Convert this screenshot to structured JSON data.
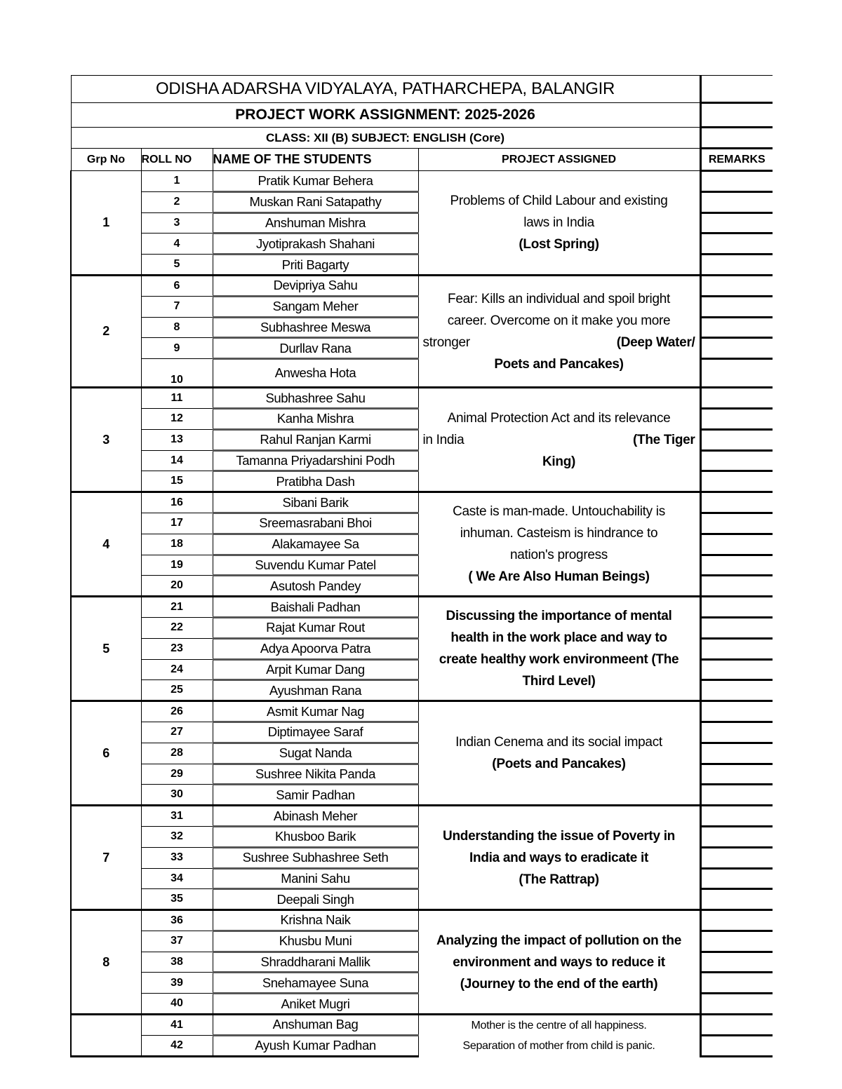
{
  "header": {
    "school": "ODISHA ADARSHA VIDYALAYA, PATHARCHEPA, BALANGIR",
    "title": "PROJECT WORK ASSIGNMENT: 2025-2026",
    "class_line": "CLASS: XII (B) SUBJECT: ENGLISH (Core)"
  },
  "columns": [
    "Grp No",
    "ROLL NO",
    "NAME OF THE STUDENTS",
    "PROJECT ASSIGNED",
    "REMARKS"
  ],
  "groups": [
    {
      "grp": "1",
      "students": [
        [
          "1",
          "Pratik Kumar Behera"
        ],
        [
          "2",
          "Muskan Rani Satapathy"
        ],
        [
          "3",
          "Anshuman Mishra"
        ],
        [
          "4",
          "Jyotiprakash Shahani"
        ],
        [
          "5",
          "Priti Bagarty"
        ]
      ],
      "project": [
        {
          "t": "Problems of Child Labour and existing"
        },
        {
          "t": "laws in India"
        },
        {
          "b": "(Lost Spring)"
        }
      ]
    },
    {
      "grp": "2",
      "students": [
        [
          "6",
          "Devipriya Sahu"
        ],
        [
          "7",
          "Sangam Meher"
        ],
        [
          "8",
          "Subhashree Meswa"
        ],
        [
          "9",
          "Durllav Rana"
        ],
        [
          "10",
          "Anwesha Hota"
        ]
      ],
      "project": [
        {
          "t": "Fear: Kills an individual and spoil bright"
        },
        {
          "t": "career. Overcome on it make you more"
        },
        {
          "t": "stronger",
          "b": "(Deep Water/",
          "split": true
        },
        {
          "b": "Poets and Pancakes)"
        }
      ]
    },
    {
      "grp": "3",
      "students": [
        [
          "11",
          "Subhashree Sahu"
        ],
        [
          "12",
          "Kanha Mishra"
        ],
        [
          "13",
          "Rahul Ranjan Karmi"
        ],
        [
          "14",
          "Tamanna Priyadarshini Podh"
        ],
        [
          "15",
          "Pratibha Dash"
        ]
      ],
      "project": [
        {
          "t": "Animal Protection Act and its relevance"
        },
        {
          "t": "in India",
          "b": "(The Tiger",
          "split": true
        },
        {
          "b": "King)"
        }
      ]
    },
    {
      "grp": "4",
      "students": [
        [
          "16",
          "Sibani Barik"
        ],
        [
          "17",
          "Sreemasrabani Bhoi"
        ],
        [
          "18",
          "Alakamayee Sa"
        ],
        [
          "19",
          "Suvendu Kumar Patel"
        ],
        [
          "20",
          "Asutosh Pandey"
        ]
      ],
      "project": [
        {
          "t": "Caste is man-made. Untouchability is"
        },
        {
          "t": "inhuman. Casteism is hindrance to"
        },
        {
          "t": "nation's progress"
        },
        {
          "b": "( We Are Also Human Beings)"
        }
      ]
    },
    {
      "grp": "5",
      "students": [
        [
          "21",
          "Baishali Padhan"
        ],
        [
          "22",
          "Rajat Kumar Rout"
        ],
        [
          "23",
          "Adya Apoorva Patra"
        ],
        [
          "24",
          "Arpit Kumar Dang"
        ],
        [
          "25",
          "Ayushman Rana"
        ]
      ],
      "project": [
        {
          "b": "Discussing the importance of mental"
        },
        {
          "b": "health in the work place and way to"
        },
        {
          "b": "create healthy work environmeent (The"
        },
        {
          "b": "Third Level)"
        }
      ]
    },
    {
      "grp": "6",
      "students": [
        [
          "26",
          "Asmit Kumar Nag"
        ],
        [
          "27",
          "Diptimayee Saraf"
        ],
        [
          "28",
          "Sugat Nanda"
        ],
        [
          "29",
          "Sushree Nikita Panda"
        ],
        [
          "30",
          "Samir Padhan"
        ]
      ],
      "project": [
        {
          "t": "Indian Cenema and its social impact"
        },
        {
          "b": "(Poets and Pancakes)"
        }
      ]
    },
    {
      "grp": "7",
      "students": [
        [
          "31",
          "Abinash Meher"
        ],
        [
          "32",
          "Khusboo Barik"
        ],
        [
          "33",
          "Sushree Subhashree Seth"
        ],
        [
          "34",
          "Manini Sahu"
        ],
        [
          "35",
          "Deepali Singh"
        ]
      ],
      "project": [
        {
          "b": "Understanding the issue of Poverty in"
        },
        {
          "b": "India and ways to eradicate it"
        },
        {
          "b": "(The Rattrap)"
        }
      ]
    },
    {
      "grp": "8",
      "students": [
        [
          "36",
          "Krishna Naik"
        ],
        [
          "37",
          "Khusbu Muni"
        ],
        [
          "38",
          "Shraddharani Mallik"
        ],
        [
          "39",
          "Snehamayee Suna"
        ],
        [
          "40",
          "Aniket Mugri"
        ]
      ],
      "project": [
        {
          "b": "Analyzing the impact of pollution on the"
        },
        {
          "b": "environment and ways to reduce it"
        },
        {
          "b": "(Journey to the end of the earth)"
        }
      ]
    },
    {
      "grp": "",
      "students": [
        [
          "41",
          "Anshuman Bag"
        ],
        [
          "42",
          "Ayush Kumar Padhan"
        ]
      ],
      "project": [
        {
          "t": "Mother is the centre of all happiness."
        },
        {
          "t": "Separation of mother from child is panic."
        }
      ],
      "partial": true
    }
  ]
}
